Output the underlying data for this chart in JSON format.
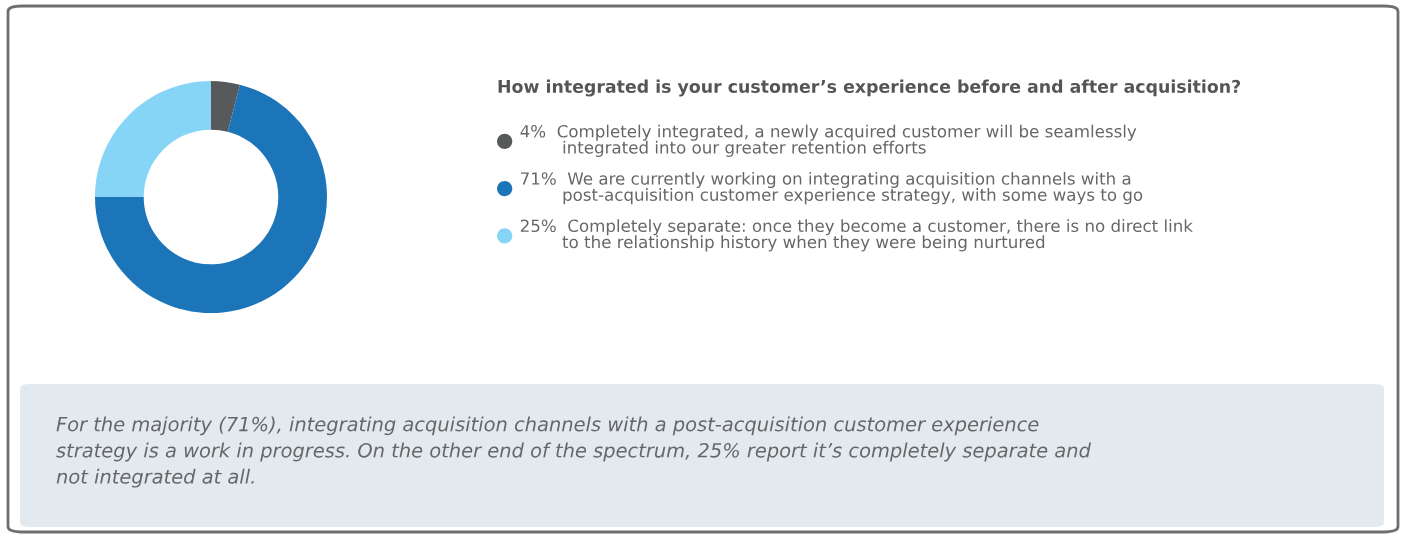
{
  "chart_data": {
    "type": "donut",
    "title": "How integrated is your customer’s experience before and after acquisition?",
    "categories": [
      "Completely integrated, a newly acquired customer will be seamlessly\nintegrated into our greater retention efforts",
      "We are currently working on integrating acquisition channels with a\npost-acquisition customer experience strategy, with some ways to go",
      "Completely separate: once they become a customer, there is no direct link\nto the relationship history when they were being nurtured"
    ],
    "values": [
      4,
      71,
      25
    ],
    "value_labels": [
      "4%",
      "71%",
      "25%"
    ],
    "colors": [
      "#58595b",
      "#1c75b9",
      "#87d5f6"
    ],
    "legend": "right",
    "annotations": [
      "For the majority (71%), integrating acquisition channels with a post-acquisition customer experience\nstrategy is a work in progress. On the other end of the spectrum, 25% report it’s completely separate and\nnot integrated at all."
    ]
  }
}
